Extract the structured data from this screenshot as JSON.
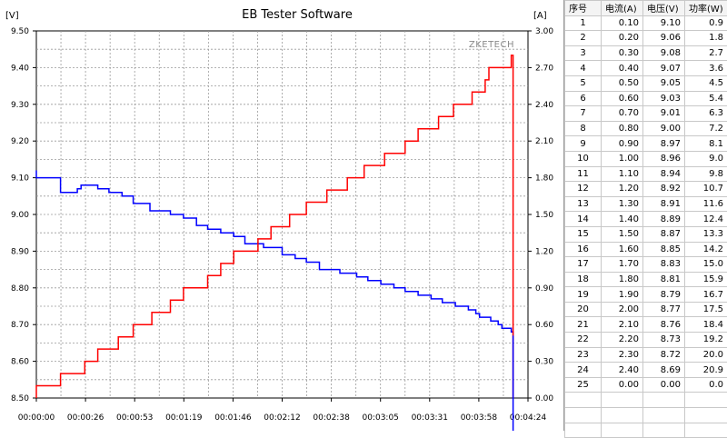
{
  "chart_data": {
    "type": "line",
    "title": "EB Tester Software",
    "watermark": "ZKETECH",
    "left_axis": {
      "unit": "[V]",
      "ylim": [
        8.5,
        9.5
      ],
      "ticks": [
        "8.50",
        "8.60",
        "8.70",
        "8.80",
        "8.90",
        "9.00",
        "9.10",
        "9.20",
        "9.30",
        "9.40",
        "9.50"
      ]
    },
    "right_axis": {
      "unit": "[A]",
      "ylim": [
        0.0,
        3.0
      ],
      "ticks": [
        "0.00",
        "0.30",
        "0.60",
        "0.90",
        "1.20",
        "1.50",
        "1.80",
        "2.10",
        "2.40",
        "2.70",
        "3.00"
      ]
    },
    "x_axis": {
      "xlim_seconds": [
        0,
        264
      ],
      "ticks": [
        "00:00:00",
        "00:00:26",
        "00:00:53",
        "00:01:19",
        "00:01:46",
        "00:02:12",
        "00:02:38",
        "00:03:05",
        "00:03:31",
        "00:03:58",
        "00:04:24"
      ]
    },
    "grid": true,
    "series": [
      {
        "axis": "left",
        "color": "#0000ff",
        "points": [
          [
            0,
            9.12
          ],
          [
            0,
            9.1
          ],
          [
            13,
            9.1
          ],
          [
            13,
            9.06
          ],
          [
            22,
            9.06
          ],
          [
            22,
            9.07
          ],
          [
            24,
            9.07
          ],
          [
            24,
            9.08
          ],
          [
            33,
            9.08
          ],
          [
            33,
            9.07
          ],
          [
            39,
            9.07
          ],
          [
            39,
            9.06
          ],
          [
            46,
            9.06
          ],
          [
            46,
            9.05
          ],
          [
            52,
            9.05
          ],
          [
            52,
            9.03
          ],
          [
            61,
            9.03
          ],
          [
            61,
            9.01
          ],
          [
            72,
            9.01
          ],
          [
            72,
            9.0
          ],
          [
            79,
            9.0
          ],
          [
            79,
            8.99
          ],
          [
            86,
            8.99
          ],
          [
            86,
            8.97
          ],
          [
            92,
            8.97
          ],
          [
            92,
            8.96
          ],
          [
            99,
            8.96
          ],
          [
            99,
            8.95
          ],
          [
            106,
            8.95
          ],
          [
            106,
            8.94
          ],
          [
            112,
            8.94
          ],
          [
            112,
            8.92
          ],
          [
            122,
            8.92
          ],
          [
            122,
            8.91
          ],
          [
            132,
            8.91
          ],
          [
            132,
            8.89
          ],
          [
            139,
            8.89
          ],
          [
            139,
            8.88
          ],
          [
            145,
            8.88
          ],
          [
            145,
            8.87
          ],
          [
            152,
            8.87
          ],
          [
            152,
            8.85
          ],
          [
            163,
            8.85
          ],
          [
            163,
            8.84
          ],
          [
            172,
            8.84
          ],
          [
            172,
            8.83
          ],
          [
            178,
            8.83
          ],
          [
            178,
            8.82
          ],
          [
            185,
            8.82
          ],
          [
            185,
            8.81
          ],
          [
            192,
            8.81
          ],
          [
            192,
            8.8
          ],
          [
            198,
            8.8
          ],
          [
            198,
            8.79
          ],
          [
            205,
            8.79
          ],
          [
            205,
            8.78
          ],
          [
            212,
            8.78
          ],
          [
            212,
            8.77
          ],
          [
            218,
            8.77
          ],
          [
            218,
            8.76
          ],
          [
            225,
            8.76
          ],
          [
            225,
            8.75
          ],
          [
            232,
            8.75
          ],
          [
            232,
            8.74
          ],
          [
            236,
            8.74
          ],
          [
            236,
            8.73
          ],
          [
            238,
            8.73
          ],
          [
            238,
            8.72
          ],
          [
            244,
            8.72
          ],
          [
            244,
            8.71
          ],
          [
            248,
            8.71
          ],
          [
            248,
            8.7
          ],
          [
            250,
            8.7
          ],
          [
            250,
            8.69
          ],
          [
            255,
            8.69
          ],
          [
            255,
            8.68
          ],
          [
            256,
            8.68
          ],
          [
            256,
            8.67
          ]
        ]
      },
      {
        "axis": "right",
        "color": "#ff0000",
        "points": [
          [
            0,
            0.0
          ],
          [
            0,
            0.1
          ],
          [
            13,
            0.1
          ],
          [
            13,
            0.2
          ],
          [
            26,
            0.2
          ],
          [
            26,
            0.3
          ],
          [
            33,
            0.3
          ],
          [
            33,
            0.4
          ],
          [
            44,
            0.4
          ],
          [
            44,
            0.5
          ],
          [
            52,
            0.5
          ],
          [
            52,
            0.6
          ],
          [
            62,
            0.6
          ],
          [
            62,
            0.7
          ],
          [
            72,
            0.7
          ],
          [
            72,
            0.8
          ],
          [
            79,
            0.8
          ],
          [
            79,
            0.9
          ],
          [
            92,
            0.9
          ],
          [
            92,
            1.0
          ],
          [
            99,
            1.0
          ],
          [
            99,
            1.1
          ],
          [
            106,
            1.1
          ],
          [
            106,
            1.2
          ],
          [
            119,
            1.2
          ],
          [
            119,
            1.3
          ],
          [
            126,
            1.3
          ],
          [
            126,
            1.4
          ],
          [
            136,
            1.4
          ],
          [
            136,
            1.5
          ],
          [
            145,
            1.5
          ],
          [
            145,
            1.6
          ],
          [
            156,
            1.6
          ],
          [
            156,
            1.7
          ],
          [
            167,
            1.7
          ],
          [
            167,
            1.8
          ],
          [
            176,
            1.8
          ],
          [
            176,
            1.9
          ],
          [
            187,
            1.9
          ],
          [
            187,
            2.0
          ],
          [
            198,
            2.0
          ],
          [
            198,
            2.1
          ],
          [
            205,
            2.1
          ],
          [
            205,
            2.2
          ],
          [
            216,
            2.2
          ],
          [
            216,
            2.3
          ],
          [
            224,
            2.3
          ],
          [
            224,
            2.4
          ],
          [
            234,
            2.4
          ],
          [
            234,
            2.5
          ],
          [
            241,
            2.5
          ],
          [
            241,
            2.6
          ],
          [
            243,
            2.6
          ],
          [
            243,
            2.7
          ],
          [
            255,
            2.7
          ],
          [
            255,
            2.8
          ],
          [
            256,
            2.8
          ],
          [
            256,
            2.5
          ],
          [
            256,
            0.0
          ]
        ]
      }
    ]
  },
  "table": {
    "headers": [
      "序号",
      "电流(A)",
      "电压(V)",
      "功率(W)"
    ],
    "rows": [
      [
        "1",
        "0.10",
        "9.10",
        "0.9"
      ],
      [
        "2",
        "0.20",
        "9.06",
        "1.8"
      ],
      [
        "3",
        "0.30",
        "9.08",
        "2.7"
      ],
      [
        "4",
        "0.40",
        "9.07",
        "3.6"
      ],
      [
        "5",
        "0.50",
        "9.05",
        "4.5"
      ],
      [
        "6",
        "0.60",
        "9.03",
        "5.4"
      ],
      [
        "7",
        "0.70",
        "9.01",
        "6.3"
      ],
      [
        "8",
        "0.80",
        "9.00",
        "7.2"
      ],
      [
        "9",
        "0.90",
        "8.97",
        "8.1"
      ],
      [
        "10",
        "1.00",
        "8.96",
        "9.0"
      ],
      [
        "11",
        "1.10",
        "8.94",
        "9.8"
      ],
      [
        "12",
        "1.20",
        "8.92",
        "10.7"
      ],
      [
        "13",
        "1.30",
        "8.91",
        "11.6"
      ],
      [
        "14",
        "1.40",
        "8.89",
        "12.4"
      ],
      [
        "15",
        "1.50",
        "8.87",
        "13.3"
      ],
      [
        "16",
        "1.60",
        "8.85",
        "14.2"
      ],
      [
        "17",
        "1.70",
        "8.83",
        "15.0"
      ],
      [
        "18",
        "1.80",
        "8.81",
        "15.9"
      ],
      [
        "19",
        "1.90",
        "8.79",
        "16.7"
      ],
      [
        "20",
        "2.00",
        "8.77",
        "17.5"
      ],
      [
        "21",
        "2.10",
        "8.76",
        "18.4"
      ],
      [
        "22",
        "2.20",
        "8.73",
        "19.2"
      ],
      [
        "23",
        "2.30",
        "8.72",
        "20.0"
      ],
      [
        "24",
        "2.40",
        "8.69",
        "20.9"
      ],
      [
        "25",
        "0.00",
        "0.00",
        "0.0"
      ]
    ],
    "empty_rows": 3
  }
}
